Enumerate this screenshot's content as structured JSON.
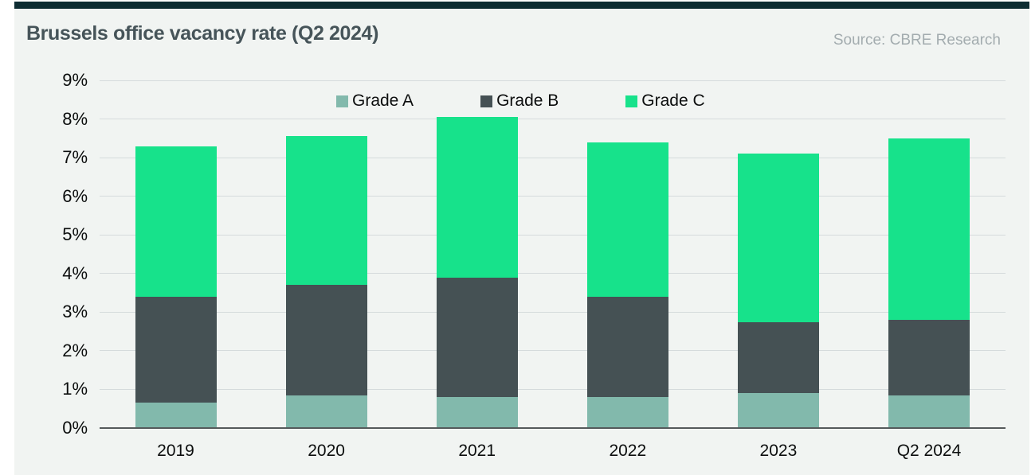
{
  "page": {
    "title": "Brussels office vacancy rate (Q2 2024)",
    "source": "Source: CBRE Research"
  },
  "colors": {
    "accent_bar": "#0e2d33",
    "card_background": "#f1f4f2",
    "grade_a": "#82b9ac",
    "grade_b": "#455154",
    "grade_c": "#17e28b",
    "gridline": "#d5dbdc",
    "baseline": "#555a5b",
    "title_text": "#465459",
    "source_text": "#a3acaf",
    "tick_text": "#0c0e0e"
  },
  "chart_data": {
    "type": "bar",
    "stacked": true,
    "title": "Brussels office vacancy rate (Q2 2024)",
    "source": "Source: CBRE Research",
    "categories": [
      "2019",
      "2020",
      "2021",
      "2022",
      "2023",
      "Q2 2024"
    ],
    "series": [
      {
        "name": "Grade A",
        "color_key": "grade_a",
        "values": [
          0.65,
          0.85,
          0.8,
          0.8,
          0.9,
          0.85
        ]
      },
      {
        "name": "Grade B",
        "color_key": "grade_b",
        "values": [
          2.75,
          2.85,
          3.1,
          2.6,
          1.85,
          1.95
        ]
      },
      {
        "name": "Grade C",
        "color_key": "grade_c",
        "values": [
          3.9,
          3.85,
          4.15,
          4.0,
          4.35,
          4.7
        ]
      }
    ],
    "totals": [
      7.3,
      7.55,
      8.05,
      7.4,
      7.1,
      7.5
    ],
    "cumulative_grade_b_top": [
      3.4,
      3.7,
      3.9,
      3.4,
      2.75,
      2.8
    ],
    "ytick_labels": [
      "0%",
      "1%",
      "2%",
      "3%",
      "4%",
      "5%",
      "6%",
      "7%",
      "8%",
      "9%"
    ],
    "ylim": [
      0,
      9
    ],
    "grid": true,
    "legend_position": "top-center",
    "legend_entries": [
      "Grade A",
      "Grade B",
      "Grade C"
    ]
  }
}
